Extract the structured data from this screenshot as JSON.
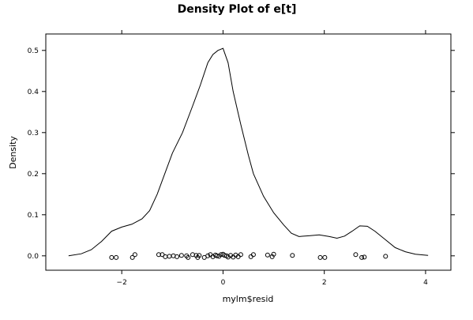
{
  "chart_data": {
    "type": "line",
    "title": "Density Plot of e[t]",
    "xlabel": "mylm$resid",
    "ylabel": "Density",
    "xlim": [
      -3.5,
      4.5
    ],
    "ylim": [
      -0.035,
      0.54
    ],
    "x_ticks": [
      -2,
      0,
      2,
      4
    ],
    "x_tick_labels": [
      "−2",
      "0",
      "2",
      "4"
    ],
    "y_ticks": [
      0.0,
      0.1,
      0.2,
      0.3,
      0.4,
      0.5
    ],
    "y_tick_labels": [
      "0.0",
      "0.1",
      "0.2",
      "0.3",
      "0.4",
      "0.5"
    ],
    "grid": false,
    "series": [
      {
        "type": "line",
        "x": [
          -3.05,
          -2.8,
          -2.6,
          -2.4,
          -2.2,
          -2.0,
          -1.8,
          -1.6,
          -1.45,
          -1.3,
          -1.15,
          -1.0,
          -0.8,
          -0.6,
          -0.45,
          -0.3,
          -0.2,
          -0.1,
          0.0,
          0.1,
          0.2,
          0.35,
          0.5,
          0.6,
          0.8,
          1.0,
          1.2,
          1.35,
          1.5,
          1.7,
          1.9,
          2.1,
          2.25,
          2.4,
          2.55,
          2.7,
          2.85,
          3.0,
          3.2,
          3.4,
          3.6,
          3.8,
          4.05
        ],
        "y": [
          0.0,
          0.005,
          0.015,
          0.035,
          0.06,
          0.07,
          0.077,
          0.09,
          0.11,
          0.15,
          0.2,
          0.25,
          0.3,
          0.365,
          0.415,
          0.47,
          0.49,
          0.5,
          0.505,
          0.47,
          0.4,
          0.32,
          0.245,
          0.2,
          0.145,
          0.105,
          0.075,
          0.055,
          0.047,
          0.049,
          0.051,
          0.047,
          0.043,
          0.048,
          0.06,
          0.073,
          0.072,
          0.06,
          0.04,
          0.02,
          0.01,
          0.004,
          0.001
        ]
      },
      {
        "type": "rug",
        "x": [
          -2.2,
          -2.11,
          -1.79,
          -1.74,
          -1.27,
          -1.2,
          -1.14,
          -1.06,
          -0.98,
          -0.91,
          -0.82,
          -0.72,
          -0.69,
          -0.6,
          -0.53,
          -0.5,
          -0.47,
          -0.37,
          -0.3,
          -0.25,
          -0.2,
          -0.15,
          -0.12,
          -0.08,
          -0.04,
          0.0,
          0.03,
          0.07,
          0.1,
          0.15,
          0.2,
          0.25,
          0.3,
          0.35,
          0.55,
          0.6,
          0.88,
          0.97,
          1.0,
          1.37,
          1.92,
          2.01,
          2.62,
          2.74,
          2.79,
          3.21
        ],
        "y": [
          -0.004,
          -0.004,
          -0.004,
          0.003,
          0.003,
          0.003,
          -0.002,
          -0.001,
          0.0,
          -0.002,
          0.001,
          0.0,
          -0.004,
          0.003,
          0.001,
          -0.004,
          0.001,
          -0.004,
          0.0,
          0.003,
          -0.002,
          0.002,
          0.0,
          -0.001,
          0.003,
          0.004,
          0.001,
          0.0,
          -0.003,
          0.001,
          -0.003,
          0.002,
          -0.002,
          0.003,
          -0.002,
          0.003,
          0.002,
          -0.002,
          0.004,
          0.001,
          -0.004,
          -0.004,
          0.003,
          -0.004,
          -0.003,
          -0.001
        ]
      }
    ]
  }
}
